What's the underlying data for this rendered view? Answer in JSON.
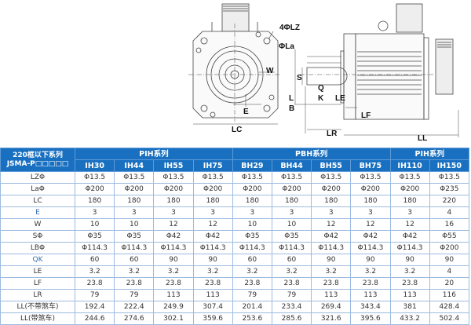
{
  "drawing": {
    "labels": {
      "lz": "4ΦLZ",
      "la": "ΦLa",
      "w": "W",
      "e": "E",
      "lc": "LC",
      "s": "S",
      "q": "Q",
      "k": "K",
      "l": "L",
      "b": "B",
      "le": "LE",
      "lf": "LF",
      "lr": "LR",
      "ll": "LL"
    }
  },
  "table": {
    "corner": [
      "220框以下系列",
      "JSMA-P□□□□□"
    ],
    "groups": [
      {
        "label": "PIH系列",
        "span": 4
      },
      {
        "label": "PBH系列",
        "span": 4
      },
      {
        "label": "PIH系列",
        "span": 2
      }
    ],
    "models": [
      "IH30",
      "IH44",
      "IH55",
      "IH75",
      "BH29",
      "BH44",
      "BH55",
      "BH75",
      "IH110",
      "IH150"
    ],
    "rows": [
      {
        "label": "LZΦ",
        "values": [
          "Φ13.5",
          "Φ13.5",
          "Φ13.5",
          "Φ13.5",
          "Φ13.5",
          "Φ13.5",
          "Φ13.5",
          "Φ13.5",
          "Φ13.5",
          "Φ13.5"
        ]
      },
      {
        "label": "LaΦ",
        "values": [
          "Φ200",
          "Φ200",
          "Φ200",
          "Φ200",
          "Φ200",
          "Φ200",
          "Φ200",
          "Φ200",
          "Φ200",
          "Φ235"
        ]
      },
      {
        "label": "LC",
        "values": [
          "180",
          "180",
          "180",
          "180",
          "180",
          "180",
          "180",
          "180",
          "180",
          "220"
        ]
      },
      {
        "label": "E",
        "values": [
          "3",
          "3",
          "3",
          "3",
          "3",
          "3",
          "3",
          "3",
          "3",
          "4"
        ]
      },
      {
        "label": "W",
        "values": [
          "10",
          "10",
          "12",
          "12",
          "10",
          "10",
          "12",
          "12",
          "12",
          "16"
        ]
      },
      {
        "label": "SΦ",
        "values": [
          "Φ35",
          "Φ35",
          "Φ42",
          "Φ42",
          "Φ35",
          "Φ35",
          "Φ42",
          "Φ42",
          "Φ42",
          "Φ55"
        ]
      },
      {
        "label": "LBΦ",
        "values": [
          "Φ114.3",
          "Φ114.3",
          "Φ114.3",
          "Φ114.3",
          "Φ114.3",
          "Φ114.3",
          "Φ114.3",
          "Φ114.3",
          "Φ114.3",
          "Φ200"
        ]
      },
      {
        "label": "QK",
        "values": [
          "60",
          "60",
          "90",
          "90",
          "60",
          "60",
          "90",
          "90",
          "90",
          "90"
        ]
      },
      {
        "label": "LE",
        "values": [
          "3.2",
          "3.2",
          "3.2",
          "3.2",
          "3.2",
          "3.2",
          "3.2",
          "3.2",
          "3.2",
          "4"
        ]
      },
      {
        "label": "LF",
        "values": [
          "23.8",
          "23.8",
          "23.8",
          "23.8",
          "23.8",
          "23.8",
          "23.8",
          "23.8",
          "23.8",
          "20"
        ]
      },
      {
        "label": "LR",
        "values": [
          "79",
          "79",
          "113",
          "113",
          "79",
          "79",
          "113",
          "113",
          "113",
          "116"
        ]
      },
      {
        "label": "LL(不带煞车)",
        "values": [
          "192.4",
          "222.4",
          "249.9",
          "307.4",
          "201.4",
          "233.4",
          "269.4",
          "343.4",
          "381",
          "428.4"
        ]
      },
      {
        "label": "LL(带煞车)",
        "values": [
          "244.6",
          "274.6",
          "302.1",
          "359.6",
          "253.6",
          "285.6",
          "321.6",
          "395.6",
          "433.2",
          "502.4"
        ]
      }
    ]
  },
  "colors": {
    "header": "#1a70c0",
    "grid": "#9dbbe0"
  }
}
